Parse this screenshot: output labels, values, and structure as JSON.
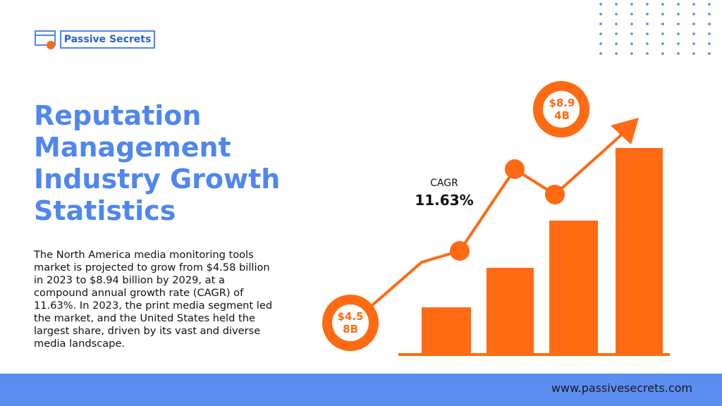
{
  "logo": {
    "text": "Passive Secrets"
  },
  "title": "Reputation Management Industry Growth Statistics",
  "body": "The North America media monitoring tools market is projected to grow from $4.58 billion in 2023 to $8.94 billion by 2029, at a compound annual growth rate (CAGR) of 11.63%. In 2023, the print media segment led the market, and the United States held the largest share, driven by its vast and diverse media landscape.",
  "graphic": {
    "cagr_label": "CAGR",
    "cagr_value": "11.63%",
    "start_label": "$4.58B",
    "end_label": "$8.94B"
  },
  "footer": {
    "url": "www.passivesecrets.com"
  }
}
